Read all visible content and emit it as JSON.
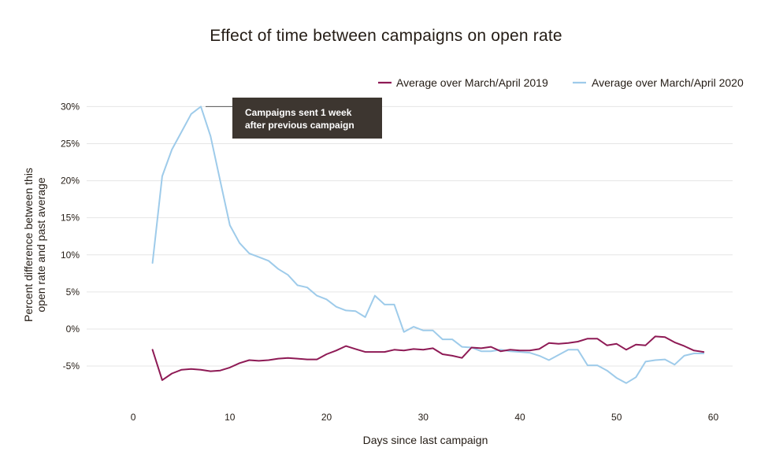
{
  "chart_data": {
    "type": "line",
    "title": "Effect of time between campaigns on open rate",
    "xlabel": "Days since last campaign",
    "ylabel": [
      "Percent difference between this",
      "open rate and past average"
    ],
    "xlim": [
      -4,
      62
    ],
    "ylim": [
      -8.5,
      31
    ],
    "xticks": [
      0,
      10,
      20,
      30,
      40,
      50,
      60
    ],
    "yticks": [
      -5,
      0,
      5,
      10,
      15,
      20,
      25,
      30
    ],
    "ytick_labels": [
      "-5%",
      "0%",
      "5%",
      "10%",
      "15%",
      "20%",
      "25%",
      "30%"
    ],
    "grid": "horizontal",
    "legend_position": "top-right",
    "series": [
      {
        "name": "Average over March/April 2019",
        "color": "#8e1a55",
        "x": [
          2,
          3,
          4,
          5,
          6,
          7,
          8,
          9,
          10,
          11,
          12,
          13,
          14,
          15,
          16,
          17,
          18,
          19,
          20,
          21,
          22,
          23,
          24,
          25,
          26,
          27,
          28,
          29,
          30,
          31,
          32,
          33,
          34,
          35,
          36,
          37,
          38,
          39,
          40,
          41,
          42,
          43,
          44,
          45,
          46,
          47,
          48,
          49,
          50,
          51,
          52,
          53,
          54,
          55,
          56,
          57,
          58,
          59
        ],
        "values": [
          -2.8,
          -6.9,
          -6.0,
          -5.5,
          -5.4,
          -5.5,
          -5.7,
          -5.6,
          -5.2,
          -4.6,
          -4.2,
          -4.3,
          -4.2,
          -4.0,
          -3.9,
          -4.0,
          -4.1,
          -4.1,
          -3.4,
          -2.9,
          -2.3,
          -2.7,
          -3.1,
          -3.1,
          -3.1,
          -2.8,
          -2.9,
          -2.7,
          -2.8,
          -2.6,
          -3.4,
          -3.6,
          -3.9,
          -2.5,
          -2.6,
          -2.4,
          -3.0,
          -2.8,
          -2.9,
          -2.9,
          -2.7,
          -1.9,
          -2.0,
          -1.9,
          -1.7,
          -1.3,
          -1.3,
          -2.2,
          -2.0,
          -2.8,
          -2.1,
          -2.2,
          -1.0,
          -1.1,
          -1.8,
          -2.3,
          -2.9,
          -3.1
        ]
      },
      {
        "name": "Average over March/April 2020",
        "color": "#9ecbea",
        "x": [
          2,
          3,
          4,
          5,
          6,
          7,
          8,
          9,
          10,
          11,
          12,
          13,
          14,
          15,
          16,
          17,
          18,
          19,
          20,
          21,
          22,
          23,
          24,
          25,
          26,
          27,
          28,
          29,
          30,
          31,
          32,
          33,
          34,
          35,
          36,
          37,
          38,
          39,
          40,
          41,
          42,
          43,
          44,
          45,
          46,
          47,
          48,
          49,
          50,
          51,
          52,
          53,
          54,
          55,
          56,
          57,
          58,
          59
        ],
        "values": [
          8.9,
          20.6,
          24.2,
          26.6,
          29.0,
          30.0,
          26.0,
          20.0,
          14.0,
          11.6,
          10.2,
          9.7,
          9.2,
          8.1,
          7.3,
          5.9,
          5.6,
          4.5,
          4.0,
          3.0,
          2.5,
          2.4,
          1.6,
          4.5,
          3.3,
          3.3,
          -0.4,
          0.3,
          -0.2,
          -0.2,
          -1.4,
          -1.4,
          -2.4,
          -2.5,
          -3.0,
          -3.0,
          -2.8,
          -3.0,
          -3.1,
          -3.2,
          -3.6,
          -4.2,
          -3.5,
          -2.8,
          -2.8,
          -4.9,
          -4.9,
          -5.6,
          -6.6,
          -7.3,
          -6.5,
          -4.4,
          -4.2,
          -4.1,
          -4.8,
          -3.6,
          -3.3,
          -3.3
        ]
      }
    ],
    "annotation": {
      "lines": [
        "Campaigns sent 1 week",
        "after previous campaign"
      ],
      "x": 7,
      "y": 30,
      "box_color": "#3d3630",
      "text_color": "#ffffff"
    },
    "colors": {
      "axis_text": "#241c15",
      "grid": "#e5e5e5"
    }
  }
}
